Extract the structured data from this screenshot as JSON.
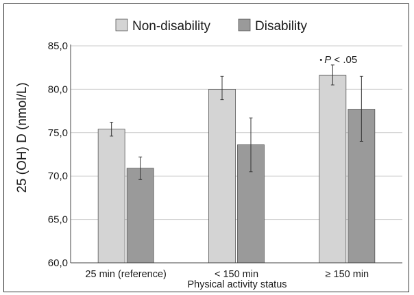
{
  "chart_data": {
    "type": "bar",
    "categories": [
      "25 min (reference)",
      "< 150 min",
      "≥ 150 min"
    ],
    "series": [
      {
        "name": "Non-disability",
        "color": "#d4d4d4",
        "values": [
          75.4,
          80.0,
          81.6
        ],
        "error_low": [
          74.6,
          78.8,
          80.5
        ],
        "error_high": [
          76.2,
          81.5,
          82.8
        ]
      },
      {
        "name": "Disability",
        "color": "#9a9a9a",
        "values": [
          70.9,
          73.6,
          77.7
        ],
        "error_low": [
          69.6,
          70.5,
          74.0
        ],
        "error_high": [
          72.2,
          76.7,
          81.5
        ]
      }
    ],
    "ylabel": "25 (OH) D (nmol/L)",
    "xlabel": "Physical activity status",
    "ylim": [
      60,
      85
    ],
    "yticks": [
      "60,0",
      "65,0",
      "70,0",
      "75,0",
      "80,0",
      "85,0"
    ],
    "grid": true,
    "legend_position": "top",
    "annotation": {
      "category_index": 2,
      "text_prefix": "•",
      "text_italic": "P",
      "text_suffix": "< .05"
    }
  }
}
